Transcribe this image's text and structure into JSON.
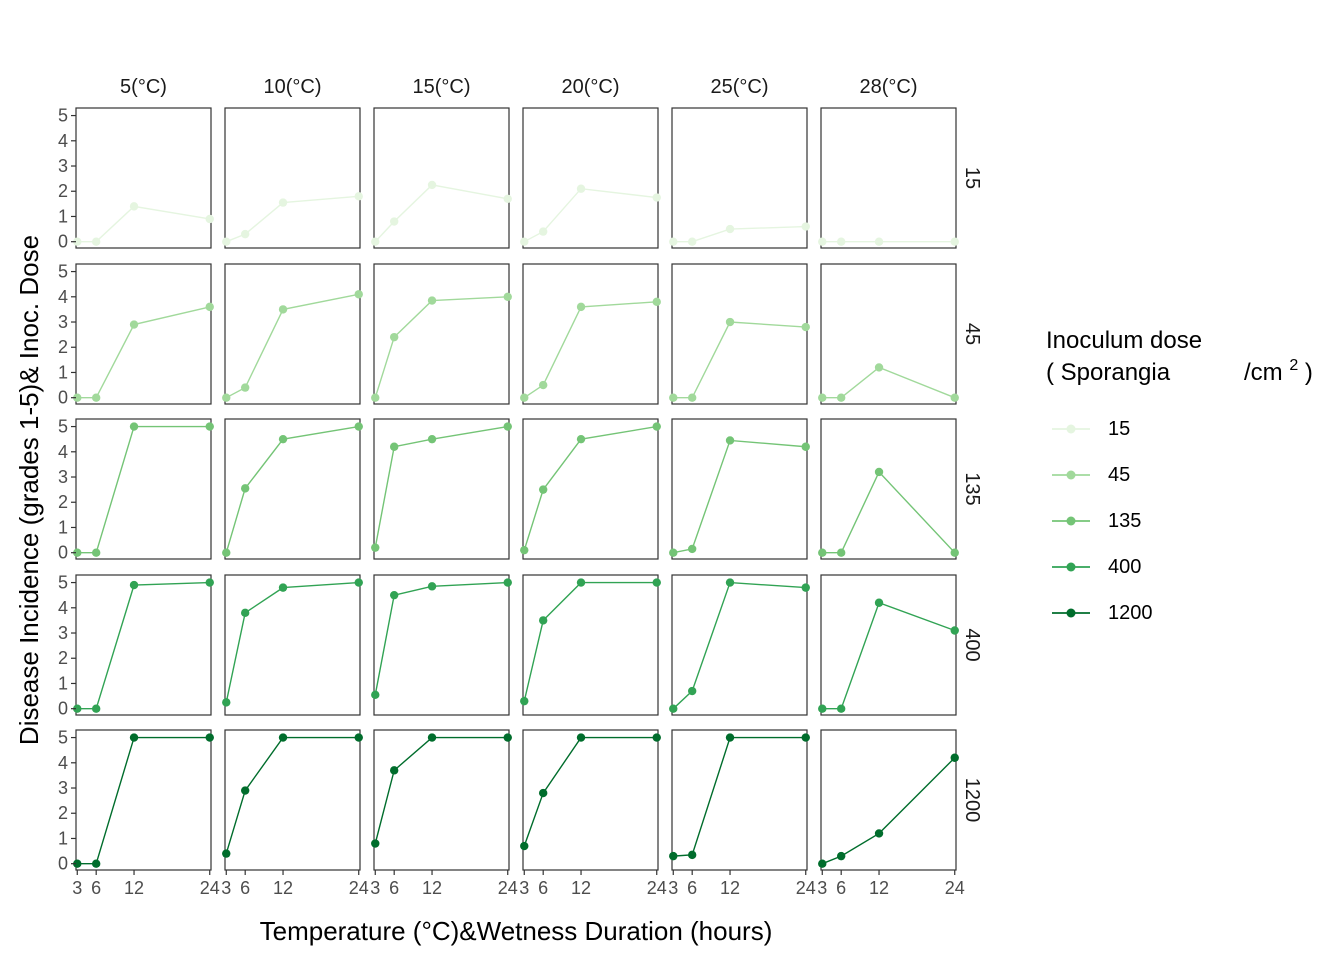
{
  "chart_data": {
    "type": "line",
    "xlabel": "Temperature (°C)&Wetness Duration (hours)",
    "ylabel": "Disease Incidence (grades 1-5)& Inoc. Dose",
    "x_ticks": [
      3,
      6,
      12,
      24
    ],
    "y_ticks": [
      0,
      1,
      2,
      3,
      4,
      5
    ],
    "xlim": [
      2.8,
      24.2
    ],
    "ylim": [
      -0.25,
      5.3
    ],
    "grid": false,
    "legend": {
      "title_line1": "Inoculum dose",
      "title_line2a": "( Sporangia",
      "title_line2b": "/cm",
      "title_sup": "2",
      "title_close": ")",
      "position": "right",
      "entries": [
        "15",
        "45",
        "135",
        "400",
        "1200"
      ]
    },
    "column_facets": [
      "5(°C)",
      "10(°C)",
      "15(°C)",
      "20(°C)",
      "25(°C)",
      "28(°C)"
    ],
    "row_facets": [
      "15",
      "45",
      "135",
      "400",
      "1200"
    ],
    "colors": {
      "15": "#e5f5e0",
      "45": "#a1d99b",
      "135": "#74c476",
      "400": "#31a354",
      "1200": "#006d2c"
    },
    "x": [
      3,
      6,
      12,
      24
    ],
    "values": {
      "15": [
        [
          0,
          0,
          1.4,
          0.9
        ],
        [
          0,
          0.3,
          1.55,
          1.8
        ],
        [
          0,
          0.8,
          2.25,
          1.7
        ],
        [
          0,
          0.4,
          2.1,
          1.75
        ],
        [
          0,
          0,
          0.5,
          0.6
        ],
        [
          0,
          0,
          0,
          0
        ]
      ],
      "45": [
        [
          0,
          0,
          2.9,
          3.6
        ],
        [
          0,
          0.4,
          3.5,
          4.1
        ],
        [
          0,
          2.4,
          3.85,
          4.0
        ],
        [
          0,
          0.5,
          3.6,
          3.8
        ],
        [
          0,
          0,
          3.0,
          2.8
        ],
        [
          0,
          0,
          1.2,
          0
        ]
      ],
      "135": [
        [
          0,
          0,
          5,
          5
        ],
        [
          0,
          2.55,
          4.5,
          5
        ],
        [
          0.2,
          4.2,
          4.5,
          5
        ],
        [
          0.1,
          2.5,
          4.5,
          5
        ],
        [
          0,
          0.15,
          4.45,
          4.2
        ],
        [
          0,
          0,
          3.2,
          0
        ]
      ],
      "400": [
        [
          0,
          0,
          4.9,
          5
        ],
        [
          0.25,
          3.8,
          4.8,
          5
        ],
        [
          0.55,
          4.5,
          4.85,
          5
        ],
        [
          0.3,
          3.5,
          5,
          5
        ],
        [
          0,
          0.7,
          5,
          4.8
        ],
        [
          0,
          0,
          4.2,
          3.1
        ]
      ],
      "1200": [
        [
          0,
          0,
          5,
          5
        ],
        [
          0.4,
          2.9,
          5,
          5
        ],
        [
          0.8,
          3.7,
          5,
          5
        ],
        [
          0.7,
          2.8,
          5,
          5
        ],
        [
          0.3,
          0.35,
          5,
          5
        ],
        [
          0,
          0.3,
          1.2,
          4.2
        ]
      ]
    }
  }
}
